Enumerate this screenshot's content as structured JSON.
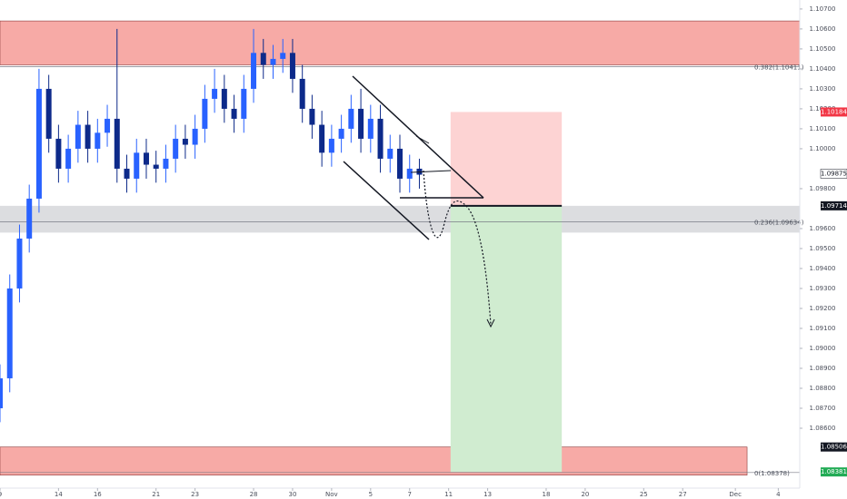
{
  "chart_data": {
    "type": "candlestick",
    "x": [
      0,
      0.5,
      1,
      1.5,
      2,
      2.5,
      3,
      3.5,
      4,
      4.5,
      5,
      5.5,
      6,
      6.5,
      7,
      7.5,
      8,
      8.5,
      9,
      9.5,
      10,
      10.5,
      11,
      11.5,
      12,
      12.5,
      13,
      13.5,
      14,
      14.5,
      15,
      15.5,
      16,
      16.5,
      17,
      17.5,
      18,
      18.5,
      19,
      19.5,
      20,
      20.5,
      21,
      21.5
    ],
    "open": [
      1.087,
      1.0885,
      1.093,
      1.0955,
      1.0975,
      1.103,
      1.1005,
      1.099,
      1.1,
      1.1012,
      1.1,
      1.1008,
      1.1015,
      1.099,
      1.0985,
      1.0998,
      1.0992,
      1.099,
      1.0995,
      1.1005,
      1.1002,
      1.101,
      1.1025,
      1.103,
      1.102,
      1.1015,
      1.103,
      1.1048,
      1.1042,
      1.1045,
      1.1048,
      1.1035,
      1.102,
      1.1012,
      1.0998,
      1.1005,
      1.101,
      1.102,
      1.1005,
      1.1015,
      1.0995,
      1.1,
      1.0985,
      1.099
    ],
    "high": [
      1.0892,
      1.0937,
      1.0962,
      1.0982,
      1.104,
      1.1037,
      1.1012,
      1.1007,
      1.1019,
      1.1019,
      1.1015,
      1.1022,
      1.106,
      1.0997,
      1.1005,
      1.1005,
      1.0999,
      1.1002,
      1.1012,
      1.1012,
      1.1017,
      1.1032,
      1.104,
      1.1037,
      1.1027,
      1.1037,
      1.106,
      1.1055,
      1.1052,
      1.1055,
      1.1055,
      1.1042,
      1.1027,
      1.1019,
      1.1012,
      1.1017,
      1.1027,
      1.103,
      1.1022,
      1.1022,
      1.1007,
      1.1007,
      1.0997,
      1.0995
    ],
    "low": [
      1.0863,
      1.0878,
      1.0923,
      1.0948,
      1.0968,
      1.0998,
      1.0983,
      1.0983,
      1.0993,
      1.0993,
      1.0993,
      1.1001,
      1.0983,
      1.0978,
      1.0978,
      1.0985,
      1.0983,
      1.0983,
      1.0988,
      1.0995,
      1.0995,
      1.1003,
      1.1018,
      1.1013,
      1.1008,
      1.1008,
      1.1023,
      1.1035,
      1.1035,
      1.1038,
      1.1028,
      1.1013,
      1.1005,
      1.0991,
      1.0991,
      1.0998,
      1.1003,
      1.0998,
      1.0998,
      1.0988,
      1.0988,
      1.0978,
      1.0978,
      1.098
    ],
    "close": [
      1.0885,
      1.093,
      1.0955,
      1.0975,
      1.103,
      1.1005,
      1.099,
      1.1,
      1.1012,
      1.1,
      1.1008,
      1.1015,
      1.099,
      1.0985,
      1.0998,
      1.0992,
      1.099,
      1.0995,
      1.1005,
      1.1002,
      1.101,
      1.1025,
      1.103,
      1.102,
      1.1015,
      1.103,
      1.1048,
      1.1042,
      1.1045,
      1.1048,
      1.1035,
      1.102,
      1.1012,
      1.0998,
      1.1005,
      1.101,
      1.102,
      1.1005,
      1.1015,
      1.0995,
      1.1,
      1.0985,
      1.099,
      1.0987
    ],
    "up_color": "#2962ff",
    "down_color": "#0d2a8a",
    "xlim": [
      0,
      41
    ],
    "ylim": [
      1.083,
      1.10745
    ],
    "xticks": [
      {
        "value": 0,
        "label": "9"
      },
      {
        "value": 3,
        "label": "14"
      },
      {
        "value": 5,
        "label": "16"
      },
      {
        "value": 8,
        "label": "21"
      },
      {
        "value": 10,
        "label": "23"
      },
      {
        "value": 13,
        "label": "28"
      },
      {
        "value": 15,
        "label": "30"
      },
      {
        "value": 17,
        "label": "Nov"
      },
      {
        "value": 19,
        "label": "5"
      },
      {
        "value": 21,
        "label": "7"
      },
      {
        "value": 23,
        "label": "11"
      },
      {
        "value": 25,
        "label": "13"
      },
      {
        "value": 28,
        "label": "18"
      },
      {
        "value": 30,
        "label": "20"
      },
      {
        "value": 33,
        "label": "25"
      },
      {
        "value": 35,
        "label": "27"
      },
      {
        "value": 37.7,
        "label": "Dec"
      },
      {
        "value": 39.9,
        "label": "4"
      }
    ],
    "yticks": [
      {
        "value": 1.107,
        "label": "1.10700"
      },
      {
        "value": 1.106,
        "label": "1.10600"
      },
      {
        "value": 1.105,
        "label": "1.10500"
      },
      {
        "value": 1.104,
        "label": "1.10400"
      },
      {
        "value": 1.103,
        "label": "1.10300"
      },
      {
        "value": 1.102,
        "label": "1.10200"
      },
      {
        "value": 1.101,
        "label": "1.10100"
      },
      {
        "value": 1.1,
        "label": "1.10000"
      },
      {
        "value": 1.098,
        "label": "1.09800"
      },
      {
        "value": 1.096,
        "label": "1.09600"
      },
      {
        "value": 1.095,
        "label": "1.09500"
      },
      {
        "value": 1.094,
        "label": "1.09400"
      },
      {
        "value": 1.093,
        "label": "1.09300"
      },
      {
        "value": 1.092,
        "label": "1.09200"
      },
      {
        "value": 1.091,
        "label": "1.09100"
      },
      {
        "value": 1.09,
        "label": "1.09000"
      },
      {
        "value": 1.089,
        "label": "1.08900"
      },
      {
        "value": 1.088,
        "label": "1.08800"
      },
      {
        "value": 1.087,
        "label": "1.08700"
      },
      {
        "value": 1.086,
        "label": "1.08600"
      }
    ],
    "zones": [
      {
        "top": 1.1064,
        "bottom": 1.1042,
        "end": 41,
        "color": "#f7aaa6"
      },
      {
        "top": 1.09714,
        "bottom": 1.0958,
        "end": 41,
        "color": "#dcdde0"
      },
      {
        "top": 1.08506,
        "bottom": 1.08365,
        "end": 38.3,
        "color": "#f7aaa6"
      }
    ],
    "fib_levels": [
      {
        "value": 1.10411,
        "label": "0.382(1.10411)"
      },
      {
        "value": 1.09634,
        "label": "0.236(1.09634)"
      },
      {
        "value": 1.08378,
        "label": "0(1.08378)"
      }
    ],
    "position": {
      "start": 23.1,
      "end": 28.8,
      "entry": 1.09714,
      "stop": 1.10184,
      "target": 1.08381,
      "stop_color": "#fdd3d3",
      "target_color": "#d0ecd0"
    },
    "price_labels": [
      {
        "value": 1.10184,
        "label": "1.10184",
        "color": "#f23645"
      },
      {
        "value": 1.09875,
        "label": "1.09875",
        "color": "#ffffff"
      },
      {
        "value": 1.09714,
        "label": "1.09714",
        "color": "#131722"
      },
      {
        "value": 1.08506,
        "label": "1.08506",
        "color": "#131722"
      },
      {
        "value": 1.08381,
        "label": "1.08381",
        "color": "#22ab55"
      }
    ]
  }
}
